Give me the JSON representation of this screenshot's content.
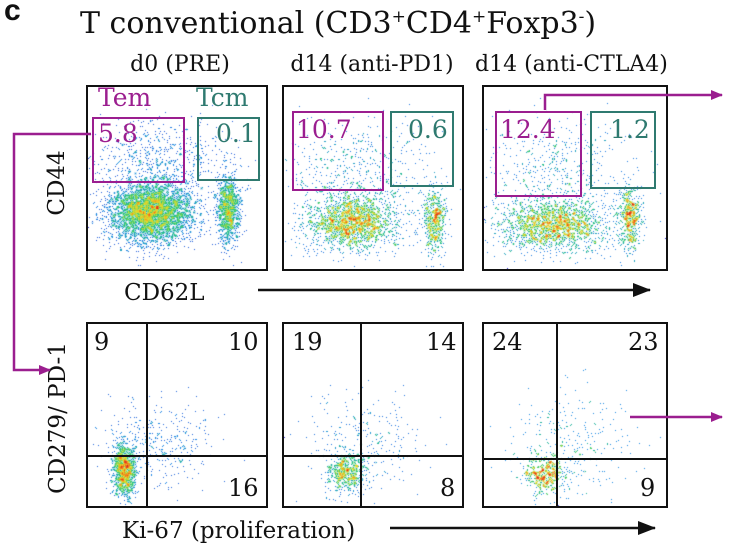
{
  "panel_letter": "c",
  "title": {
    "prefix": "T conventional (CD3",
    "sup1": "+",
    "mid1": "CD4",
    "sup2": "+",
    "mid2": "Foxp3",
    "sup3": "-",
    "suffix": ")"
  },
  "columns": [
    "d0 (PRE)",
    "d14 (anti-PD1)",
    "d14 (anti-CTLA4)"
  ],
  "gate_labels": {
    "em": "Tem",
    "cm": "Tcm"
  },
  "top_axes": {
    "y": "CD44",
    "x": "CD62L"
  },
  "bottom_axes": {
    "y": "CD279/ PD-1",
    "x": "Ki-67 (proliferation)"
  },
  "top_plots": [
    {
      "tem": "5.8",
      "tcm": "0.1"
    },
    {
      "tem": "10.7",
      "tcm": "0.6"
    },
    {
      "tem": "12.4",
      "tcm": "1.2"
    }
  ],
  "bottom_plots": [
    {
      "ul": "9",
      "ur": "10",
      "lr": "16"
    },
    {
      "ul": "19",
      "ur": "14",
      "lr": "8"
    },
    {
      "ul": "24",
      "ur": "23",
      "lr": "9"
    }
  ],
  "colors": {
    "em": "#9b1e8f",
    "cm": "#2f7a70",
    "arrow": "#9b1e8f"
  }
}
